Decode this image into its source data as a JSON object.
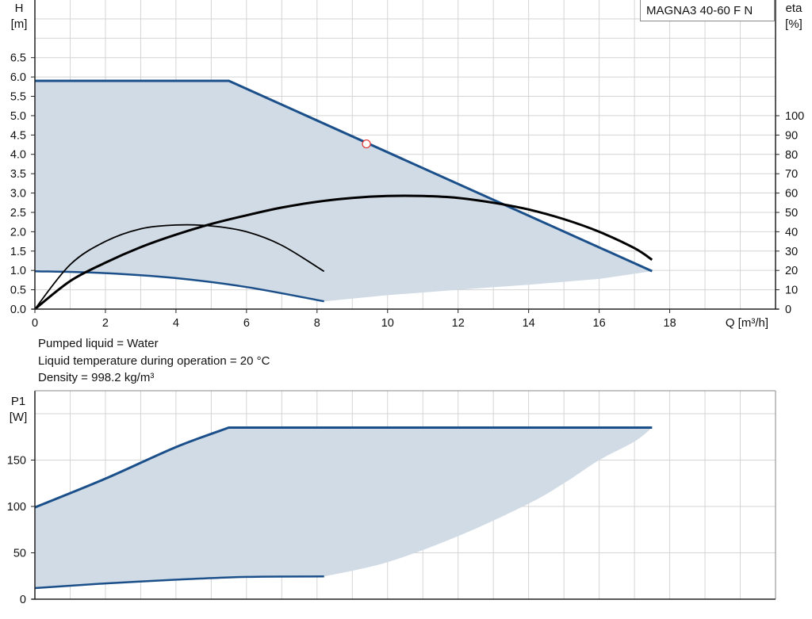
{
  "pump_label": "MAGNA3 40-60 F N",
  "notes": {
    "liquid": "Pumped liquid = Water",
    "temperature": "Liquid temperature during operation = 20 °C",
    "density": "Density = 998.2 kg/m³"
  },
  "colors": {
    "envelope_fill": "#d0dbe6",
    "curve_blue": "#1a4f8a",
    "efficiency_black": "#000000",
    "grid": "#d4d4d4",
    "duty_point": "#e03030"
  },
  "chart_data": [
    {
      "type": "line",
      "xlabel": "Q [m³/h]",
      "ylabel": "H\n[m]",
      "ylabel_right": "eta\n[%]",
      "xlim": [
        0,
        21
      ],
      "ylim": [
        0,
        8
      ],
      "x_ticks": [
        "0",
        "2",
        "4",
        "6",
        "8",
        "10",
        "12",
        "14",
        "16",
        "18"
      ],
      "y_ticks": [
        "0.0",
        "0.5",
        "1.0",
        "1.5",
        "2.0",
        "2.5",
        "3.0",
        "3.5",
        "4.0",
        "4.5",
        "5.0",
        "5.5",
        "6.0",
        "6.5"
      ],
      "y2_ticks": [
        "0",
        "10",
        "20",
        "30",
        "40",
        "50",
        "60",
        "70",
        "80",
        "90",
        "100"
      ],
      "y2lim": [
        0,
        100
      ],
      "grid": true,
      "series": [
        {
          "role": "max_head",
          "x": [
            0,
            5.5,
            17.5
          ],
          "y": [
            5.9,
            5.9,
            0.98
          ]
        },
        {
          "role": "min_head",
          "x": [
            0,
            2,
            4,
            6,
            8.2
          ],
          "y": [
            0.98,
            0.93,
            0.8,
            0.57,
            0.2
          ]
        },
        {
          "role": "envelope_bottom",
          "x": [
            8.2,
            10,
            12,
            14,
            16,
            17.5
          ],
          "y": [
            0.2,
            0.36,
            0.5,
            0.63,
            0.78,
            0.98
          ]
        },
        {
          "role": "efficiency_max_speed",
          "axis": "right",
          "x": [
            0,
            1,
            2,
            3,
            4,
            5,
            6,
            7,
            8,
            9,
            10,
            11,
            12,
            13,
            14,
            15,
            16,
            17,
            17.5
          ],
          "y": [
            0,
            14.5,
            24,
            32,
            38.5,
            44,
            48.5,
            52.5,
            55.5,
            57.5,
            58.5,
            58.5,
            57.5,
            55,
            51.5,
            46.5,
            40,
            31.5,
            25.5
          ]
        },
        {
          "role": "efficiency_min_speed",
          "axis": "right",
          "x": [
            0,
            1,
            2,
            3,
            4,
            5,
            6,
            7,
            8.2
          ],
          "y": [
            0,
            23,
            35,
            41.5,
            43.5,
            43,
            40,
            33,
            19.5
          ]
        }
      ],
      "duty_point": {
        "x": 9.4,
        "y": 4.27
      }
    },
    {
      "type": "line",
      "xlabel": "",
      "ylabel": "P1\n[W]",
      "xlim": [
        0,
        21
      ],
      "ylim": [
        0,
        210
      ],
      "y_ticks": [
        "0",
        "50",
        "100",
        "150"
      ],
      "grid": true,
      "series": [
        {
          "role": "max_power",
          "x": [
            0,
            2,
            4,
            5.5,
            17.5
          ],
          "y": [
            99,
            130,
            164,
            185,
            185
          ]
        },
        {
          "role": "min_power",
          "x": [
            0,
            2,
            4,
            6,
            8.2
          ],
          "y": [
            12,
            17,
            21,
            24,
            24.5
          ]
        },
        {
          "role": "envelope_bottom",
          "x": [
            8.2,
            10,
            12,
            14,
            15,
            16,
            17,
            17.5
          ],
          "y": [
            24.5,
            40,
            68,
            103,
            125,
            150,
            170,
            185
          ]
        }
      ]
    }
  ]
}
